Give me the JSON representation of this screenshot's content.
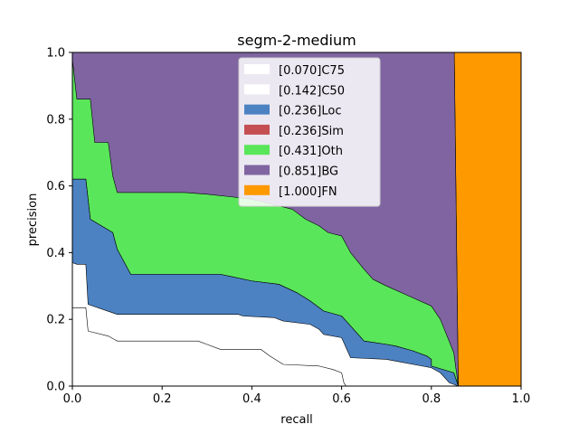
{
  "chart_data": {
    "type": "area",
    "title": "segm-2-medium",
    "xlabel": "recall",
    "ylabel": "precision",
    "xlim": [
      0,
      1
    ],
    "ylim": [
      0,
      1
    ],
    "xticks": [
      "0.0",
      "0.2",
      "0.4",
      "0.6",
      "0.8",
      "1.0"
    ],
    "yticks": [
      "0.0",
      "0.2",
      "0.4",
      "0.6",
      "0.8",
      "1.0"
    ],
    "legend_position": "upper-center",
    "grid": false,
    "series": [
      {
        "name": "[0.070]C75",
        "color": "#ffffff",
        "points": [
          [
            0,
            0.235
          ],
          [
            0.03,
            0.235
          ],
          [
            0.035,
            0.165
          ],
          [
            0.08,
            0.15
          ],
          [
            0.1,
            0.135
          ],
          [
            0.28,
            0.135
          ],
          [
            0.3,
            0.125
          ],
          [
            0.33,
            0.11
          ],
          [
            0.42,
            0.11
          ],
          [
            0.44,
            0.09
          ],
          [
            0.47,
            0.065
          ],
          [
            0.55,
            0.06
          ],
          [
            0.58,
            0.05
          ],
          [
            0.6,
            0.04
          ],
          [
            0.605,
            0.01
          ],
          [
            0.61,
            0
          ]
        ]
      },
      {
        "name": "[0.142]C50",
        "color": "#ffffff",
        "points": [
          [
            0,
            0.37
          ],
          [
            0.01,
            0.365
          ],
          [
            0.03,
            0.365
          ],
          [
            0.035,
            0.245
          ],
          [
            0.1,
            0.215
          ],
          [
            0.37,
            0.215
          ],
          [
            0.38,
            0.21
          ],
          [
            0.45,
            0.205
          ],
          [
            0.47,
            0.195
          ],
          [
            0.53,
            0.185
          ],
          [
            0.55,
            0.17
          ],
          [
            0.56,
            0.155
          ],
          [
            0.6,
            0.145
          ],
          [
            0.62,
            0.085
          ],
          [
            0.7,
            0.08
          ],
          [
            0.72,
            0.075
          ],
          [
            0.78,
            0.06
          ],
          [
            0.8,
            0.055
          ],
          [
            0.82,
            0.04
          ],
          [
            0.84,
            0.01
          ],
          [
            0.85,
            0.005
          ],
          [
            0.86,
            0
          ]
        ]
      },
      {
        "name": "[0.236]Loc",
        "color": "#4c82c2",
        "points": [
          [
            0,
            0.62
          ],
          [
            0.03,
            0.62
          ],
          [
            0.04,
            0.5
          ],
          [
            0.09,
            0.46
          ],
          [
            0.1,
            0.41
          ],
          [
            0.12,
            0.36
          ],
          [
            0.13,
            0.335
          ],
          [
            0.33,
            0.335
          ],
          [
            0.4,
            0.315
          ],
          [
            0.46,
            0.305
          ],
          [
            0.5,
            0.28
          ],
          [
            0.53,
            0.255
          ],
          [
            0.56,
            0.225
          ],
          [
            0.6,
            0.21
          ],
          [
            0.62,
            0.18
          ],
          [
            0.65,
            0.135
          ],
          [
            0.7,
            0.125
          ],
          [
            0.72,
            0.12
          ],
          [
            0.76,
            0.105
          ],
          [
            0.79,
            0.09
          ],
          [
            0.8,
            0.08
          ],
          [
            0.8,
            0.06
          ],
          [
            0.85,
            0.04
          ],
          [
            0.86,
            0
          ]
        ]
      },
      {
        "name": "[0.236]Sim",
        "color": "#c44e52",
        "points": [
          [
            0,
            0.62
          ],
          [
            0.03,
            0.62
          ],
          [
            0.04,
            0.5
          ],
          [
            0.09,
            0.46
          ],
          [
            0.1,
            0.41
          ],
          [
            0.12,
            0.36
          ],
          [
            0.13,
            0.335
          ],
          [
            0.33,
            0.335
          ],
          [
            0.4,
            0.315
          ],
          [
            0.46,
            0.305
          ],
          [
            0.5,
            0.28
          ],
          [
            0.53,
            0.255
          ],
          [
            0.56,
            0.225
          ],
          [
            0.6,
            0.21
          ],
          [
            0.62,
            0.18
          ],
          [
            0.65,
            0.135
          ],
          [
            0.7,
            0.125
          ],
          [
            0.72,
            0.12
          ],
          [
            0.76,
            0.105
          ],
          [
            0.79,
            0.09
          ],
          [
            0.8,
            0.08
          ],
          [
            0.8,
            0.06
          ],
          [
            0.85,
            0.04
          ],
          [
            0.86,
            0
          ]
        ]
      },
      {
        "name": "[0.431]Oth",
        "color": "#5ae65a",
        "points": [
          [
            0,
            0.98
          ],
          [
            0.01,
            0.86
          ],
          [
            0.04,
            0.86
          ],
          [
            0.05,
            0.73
          ],
          [
            0.08,
            0.73
          ],
          [
            0.09,
            0.63
          ],
          [
            0.1,
            0.58
          ],
          [
            0.25,
            0.58
          ],
          [
            0.3,
            0.575
          ],
          [
            0.37,
            0.565
          ],
          [
            0.4,
            0.56
          ],
          [
            0.46,
            0.54
          ],
          [
            0.49,
            0.53
          ],
          [
            0.52,
            0.5
          ],
          [
            0.55,
            0.48
          ],
          [
            0.57,
            0.46
          ],
          [
            0.6,
            0.45
          ],
          [
            0.62,
            0.4
          ],
          [
            0.65,
            0.35
          ],
          [
            0.67,
            0.32
          ],
          [
            0.7,
            0.3
          ],
          [
            0.75,
            0.27
          ],
          [
            0.8,
            0.24
          ],
          [
            0.82,
            0.2
          ],
          [
            0.85,
            0.1
          ],
          [
            0.86,
            0
          ]
        ]
      },
      {
        "name": "[0.851]BG",
        "color": "#8064a2",
        "points": [
          [
            0,
            1.0
          ],
          [
            0.851,
            1.0
          ],
          [
            0.86,
            0
          ]
        ]
      },
      {
        "name": "[1.000]FN",
        "color": "#ff9900",
        "points": [
          [
            0.851,
            1.0
          ],
          [
            1.0,
            1.0
          ],
          [
            1.0,
            0
          ],
          [
            0.86,
            0
          ]
        ]
      }
    ]
  }
}
